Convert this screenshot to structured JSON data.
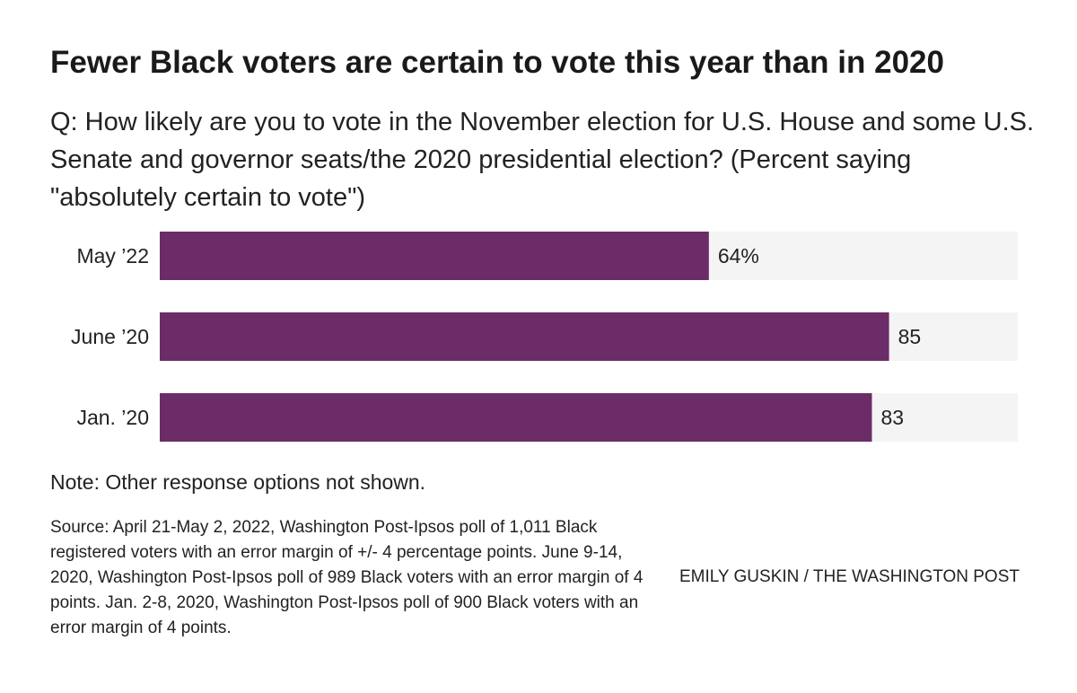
{
  "title": "Fewer Black voters are certain to vote this year than in 2020",
  "subtitle": "Q: How likely are you to vote in the November election for U.S. House and some U.S. Senate and governor seats/the 2020 presidential election? (Percent saying \"absolutely certain to vote\")",
  "note": "Note: Other response options not shown.",
  "source": "Source: April 21-May 2, 2022, Washington Post-Ipsos poll of 1,011 Black registered voters with an error margin of +/- 4 percentage points. June 9-14, 2020, Washington Post-Ipsos poll of 989 Black voters with an error margin of 4 points. Jan. 2-8, 2020, Washington Post-Ipsos poll of 900 Black voters with an error margin of 4 points.",
  "credit": "EMILY GUSKIN / THE WASHINGTON POST",
  "colors": {
    "bar": "#6b2c67",
    "track": "#f4f4f4"
  },
  "chart_data": {
    "type": "bar",
    "orientation": "horizontal",
    "categories": [
      "May ’22",
      "June ’20",
      "Jan. ’20"
    ],
    "values": [
      64,
      85,
      83
    ],
    "value_labels": [
      "64%",
      "85",
      "83"
    ],
    "xlim": [
      0,
      100
    ],
    "background_track": true,
    "grid": false
  }
}
